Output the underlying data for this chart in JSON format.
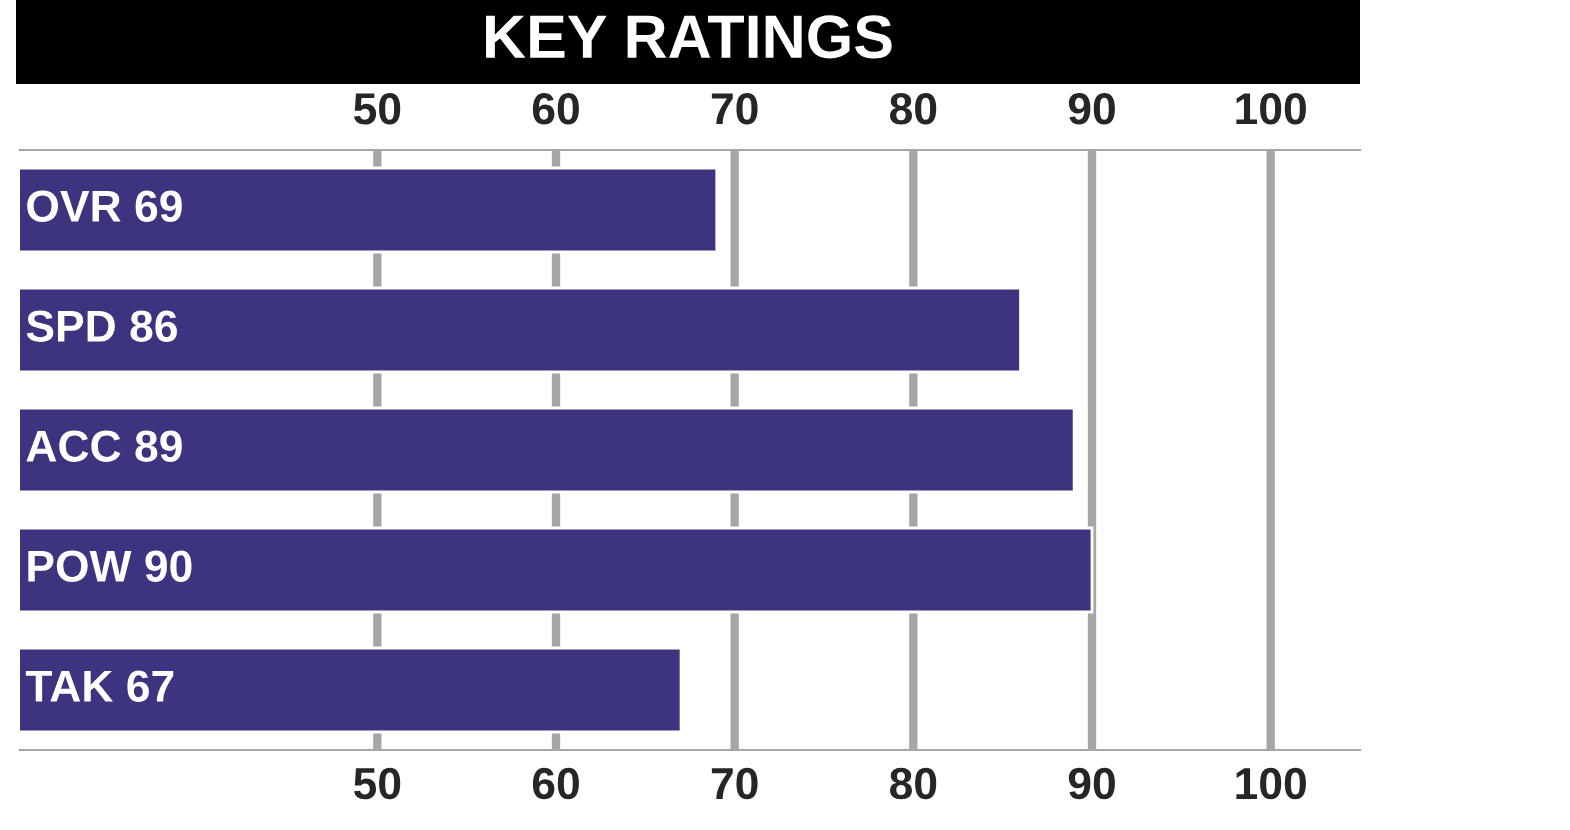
{
  "chart_data": {
    "type": "bar",
    "orientation": "horizontal",
    "title": "KEY RATINGS",
    "categories": [
      "OVR 69",
      "SPD 86",
      "ACC 89",
      "POW 90",
      "TAK 67"
    ],
    "values": [
      69,
      86,
      89,
      90,
      67
    ],
    "color": "#3d3480",
    "xlim": [
      30,
      105
    ],
    "xticks": [
      50,
      60,
      70,
      80,
      90,
      100
    ],
    "x2lim": [
      30,
      105
    ],
    "x2ticks": [
      50,
      60,
      70,
      80,
      90,
      100
    ],
    "grid": "x",
    "legend": false
  }
}
